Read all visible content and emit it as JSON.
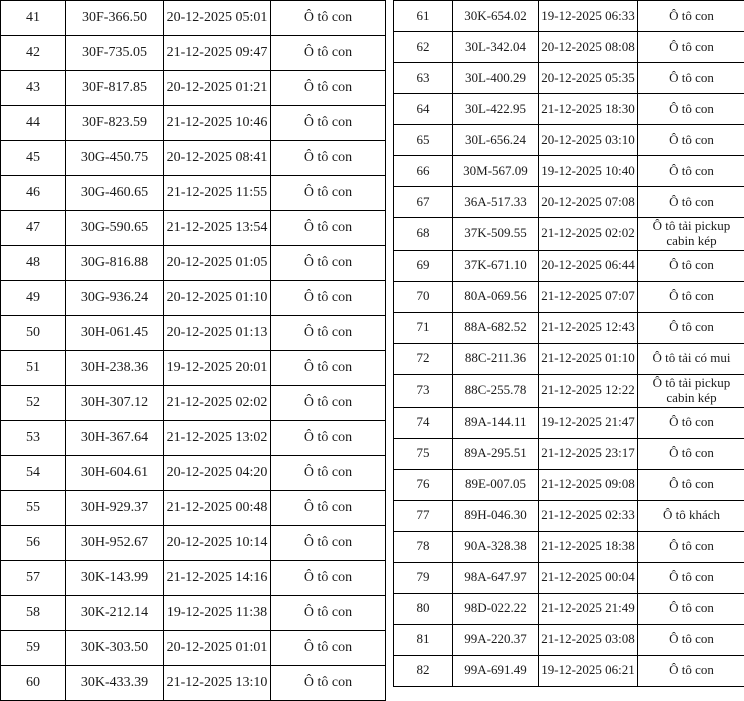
{
  "left_table": {
    "rows": [
      {
        "no": "41",
        "plate": "30F-366.50",
        "time": "20-12-2025 05:01",
        "type": "Ô tô con"
      },
      {
        "no": "42",
        "plate": "30F-735.05",
        "time": "21-12-2025 09:47",
        "type": "Ô tô con"
      },
      {
        "no": "43",
        "plate": "30F-817.85",
        "time": "20-12-2025 01:21",
        "type": "Ô tô con"
      },
      {
        "no": "44",
        "plate": "30F-823.59",
        "time": "21-12-2025 10:46",
        "type": "Ô tô con"
      },
      {
        "no": "45",
        "plate": "30G-450.75",
        "time": "20-12-2025 08:41",
        "type": "Ô tô con"
      },
      {
        "no": "46",
        "plate": "30G-460.65",
        "time": "21-12-2025 11:55",
        "type": "Ô tô con"
      },
      {
        "no": "47",
        "plate": "30G-590.65",
        "time": "21-12-2025 13:54",
        "type": "Ô tô con"
      },
      {
        "no": "48",
        "plate": "30G-816.88",
        "time": "20-12-2025 01:05",
        "type": "Ô tô con"
      },
      {
        "no": "49",
        "plate": "30G-936.24",
        "time": "20-12-2025 01:10",
        "type": "Ô tô con"
      },
      {
        "no": "50",
        "plate": "30H-061.45",
        "time": "20-12-2025 01:13",
        "type": "Ô tô con"
      },
      {
        "no": "51",
        "plate": "30H-238.36",
        "time": "19-12-2025 20:01",
        "type": "Ô tô con"
      },
      {
        "no": "52",
        "plate": "30H-307.12",
        "time": "21-12-2025 02:02",
        "type": "Ô tô con"
      },
      {
        "no": "53",
        "plate": "30H-367.64",
        "time": "21-12-2025 13:02",
        "type": "Ô tô con"
      },
      {
        "no": "54",
        "plate": "30H-604.61",
        "time": "20-12-2025 04:20",
        "type": "Ô tô con"
      },
      {
        "no": "55",
        "plate": "30H-929.37",
        "time": "21-12-2025 00:48",
        "type": "Ô tô con"
      },
      {
        "no": "56",
        "plate": "30H-952.67",
        "time": "20-12-2025 10:14",
        "type": "Ô tô con"
      },
      {
        "no": "57",
        "plate": "30K-143.99",
        "time": "21-12-2025 14:16",
        "type": "Ô tô con"
      },
      {
        "no": "58",
        "plate": "30K-212.14",
        "time": "19-12-2025 11:38",
        "type": "Ô tô con"
      },
      {
        "no": "59",
        "plate": "30K-303.50",
        "time": "20-12-2025 01:01",
        "type": "Ô tô con"
      },
      {
        "no": "60",
        "plate": "30K-433.39",
        "time": "21-12-2025 13:10",
        "type": "Ô tô con"
      }
    ]
  },
  "right_table": {
    "rows": [
      {
        "no": "61",
        "plate": "30K-654.02",
        "time": "19-12-2025 06:33",
        "type": "Ô tô con"
      },
      {
        "no": "62",
        "plate": "30L-342.04",
        "time": "20-12-2025 08:08",
        "type": "Ô tô con"
      },
      {
        "no": "63",
        "plate": "30L-400.29",
        "time": "20-12-2025 05:35",
        "type": "Ô tô con"
      },
      {
        "no": "64",
        "plate": "30L-422.95",
        "time": "21-12-2025 18:30",
        "type": "Ô tô con"
      },
      {
        "no": "65",
        "plate": "30L-656.24",
        "time": "20-12-2025 03:10",
        "type": "Ô tô con"
      },
      {
        "no": "66",
        "plate": "30M-567.09",
        "time": "19-12-2025 10:40",
        "type": "Ô tô con"
      },
      {
        "no": "67",
        "plate": "36A-517.33",
        "time": "20-12-2025 07:08",
        "type": "Ô tô con"
      },
      {
        "no": "68",
        "plate": "37K-509.55",
        "time": "21-12-2025 02:02",
        "type": "Ô tô tải pickup cabin kép"
      },
      {
        "no": "69",
        "plate": "37K-671.10",
        "time": "20-12-2025 06:44",
        "type": "Ô tô con"
      },
      {
        "no": "70",
        "plate": "80A-069.56",
        "time": "21-12-2025 07:07",
        "type": "Ô tô con"
      },
      {
        "no": "71",
        "plate": "88A-682.52",
        "time": "21-12-2025 12:43",
        "type": "Ô tô con"
      },
      {
        "no": "72",
        "plate": "88C-211.36",
        "time": "21-12-2025 01:10",
        "type": "Ô tô tải có mui"
      },
      {
        "no": "73",
        "plate": "88C-255.78",
        "time": "21-12-2025 12:22",
        "type": "Ô tô tải pickup cabin kép"
      },
      {
        "no": "74",
        "plate": "89A-144.11",
        "time": "19-12-2025 21:47",
        "type": "Ô tô con"
      },
      {
        "no": "75",
        "plate": "89A-295.51",
        "time": "21-12-2025 23:17",
        "type": "Ô tô con"
      },
      {
        "no": "76",
        "plate": "89E-007.05",
        "time": "21-12-2025 09:08",
        "type": "Ô tô con"
      },
      {
        "no": "77",
        "plate": "89H-046.30",
        "time": "21-12-2025 02:33",
        "type": "Ô tô khách"
      },
      {
        "no": "78",
        "plate": "90A-328.38",
        "time": "21-12-2025 18:38",
        "type": "Ô tô con"
      },
      {
        "no": "79",
        "plate": "98A-647.97",
        "time": "21-12-2025 00:04",
        "type": "Ô tô con"
      },
      {
        "no": "80",
        "plate": "98D-022.22",
        "time": "21-12-2025 21:49",
        "type": "Ô tô con"
      },
      {
        "no": "81",
        "plate": "99A-220.37",
        "time": "21-12-2025 03:08",
        "type": "Ô tô con"
      },
      {
        "no": "82",
        "plate": "99A-691.49",
        "time": "19-12-2025 06:21",
        "type": "Ô tô con"
      }
    ]
  }
}
